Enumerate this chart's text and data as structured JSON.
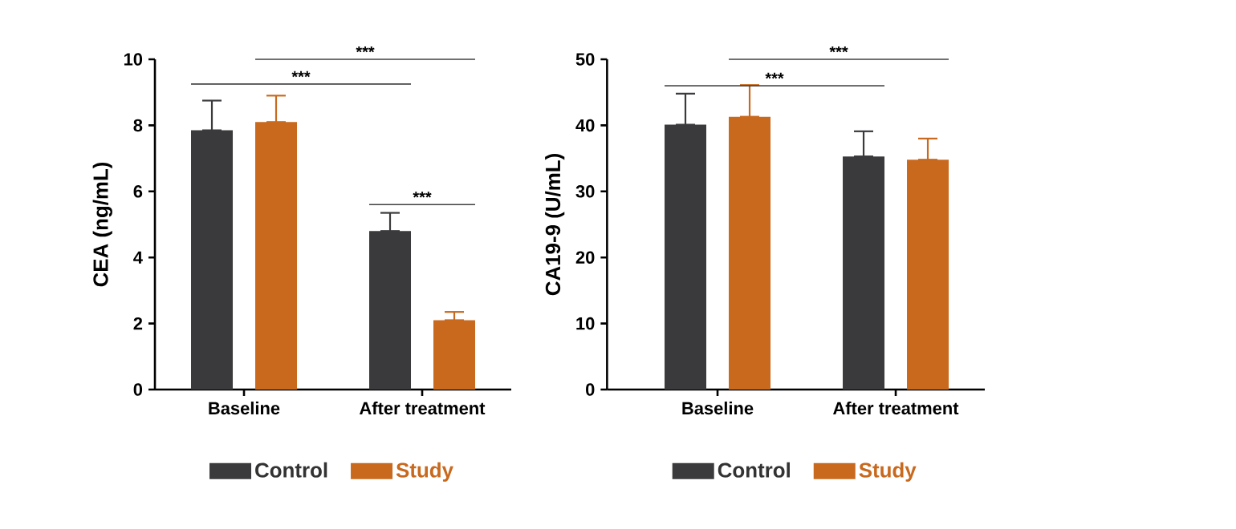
{
  "chart_data": [
    {
      "type": "bar",
      "ylabel": "CEA (ng/mL)",
      "categories": [
        "Baseline",
        "After treatment"
      ],
      "ylim": [
        0,
        10
      ],
      "yticks": [
        0,
        2,
        4,
        6,
        8,
        10
      ],
      "legend": "bottom",
      "series": [
        {
          "name": "Control",
          "color": "#3a3a3c",
          "values": [
            7.85,
            4.8
          ],
          "errors": [
            [
              7.85,
              8.75
            ],
            [
              4.8,
              5.35
            ]
          ]
        },
        {
          "name": "Study",
          "color": "#c8691e",
          "values": [
            8.1,
            2.1
          ],
          "errors": [
            [
              8.1,
              8.9
            ],
            [
              2.1,
              2.35
            ]
          ]
        }
      ],
      "annotations": [
        "***",
        "***",
        "***"
      ]
    },
    {
      "type": "bar",
      "ylabel": "CA19-9 (U/mL)",
      "categories": [
        "Baseline",
        "After treatment"
      ],
      "ylim": [
        0,
        50
      ],
      "yticks": [
        0,
        10,
        20,
        30,
        40,
        50
      ],
      "legend": "bottom",
      "series": [
        {
          "name": "Control",
          "color": "#3a3a3c",
          "values": [
            40.1,
            35.3
          ],
          "errors": [
            [
              40.1,
              44.8
            ],
            [
              35.3,
              39.1
            ]
          ]
        },
        {
          "name": "Study",
          "color": "#c8691e",
          "values": [
            41.3,
            34.8
          ],
          "errors": [
            [
              41.3,
              46.1
            ],
            [
              34.8,
              38.0
            ]
          ]
        }
      ],
      "annotations": [
        "***",
        "***"
      ]
    }
  ]
}
